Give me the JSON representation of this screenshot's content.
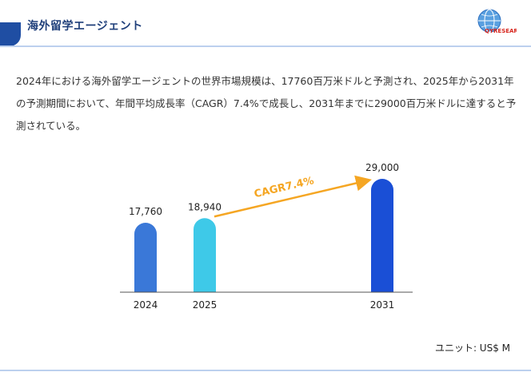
{
  "header": {
    "title": "海外留学エージェント",
    "logo_text": "QYRESEARCH"
  },
  "intro": {
    "text": "2024年における海外留学エージェントの世界市場規模は、17760百万米ドルと予測され、2025年から2031年の予測期間において、年間平均成長率（CAGR）7.4%で成長し、2031年までに29000百万米ドルに達すると予測されている。"
  },
  "unit_note": "ユニット: US$ M",
  "colors": {
    "bar_2024": "#3a78d8",
    "bar_2025": "#3ec9e8",
    "bar_2031": "#1a4fd6",
    "cagr_arrow": "#f5a623",
    "header": "#1f3f7a"
  },
  "chart_data": {
    "type": "bar",
    "categories": [
      "2024",
      "2025",
      "2031"
    ],
    "values": [
      17760,
      18940,
      29000
    ],
    "value_labels": [
      "17,760",
      "18,940",
      "29,000"
    ],
    "ylim": [
      0,
      29000
    ],
    "title": "",
    "xlabel": "",
    "ylabel": "",
    "grid": false,
    "annotation": {
      "text": "CAGR7.4%",
      "from": "2025",
      "to": "2031"
    }
  }
}
